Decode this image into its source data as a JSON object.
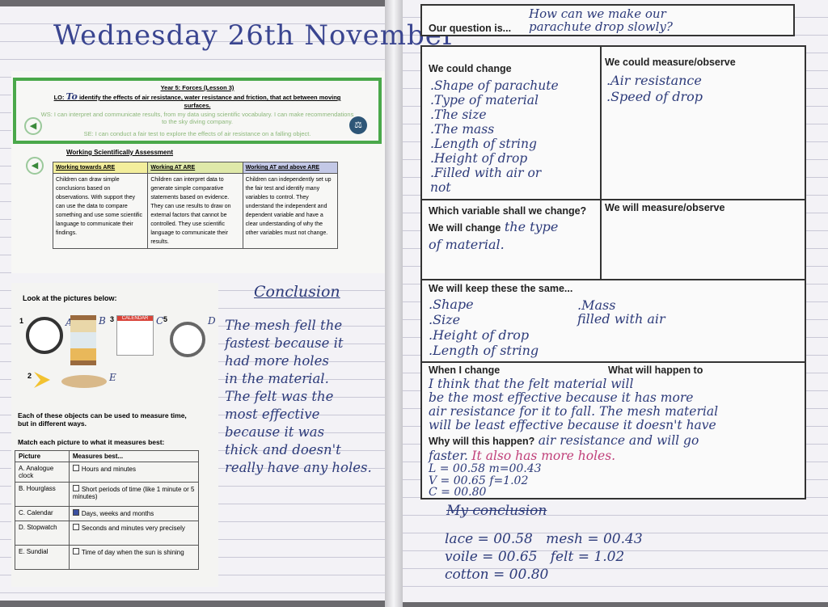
{
  "left_page": {
    "date_title": "Wednesday 26th November",
    "objectives": {
      "heading": "Year 5: Forces (Lesson 3)",
      "lo_prefix": "LO:",
      "lo_correction": "To",
      "lo": "identify the effects of air resistance, water resistance and friction, that act between moving surfaces.",
      "ws": "WS: I can interpret and communicate results, from my data using scientific vocabulary. I can make recommendations to the sky diving company.",
      "se": "SE: I can conduct a fair test to explore the effects of air resistance on a falling object."
    },
    "assessment": {
      "title": "Working Scientifically Assessment",
      "columns": [
        {
          "header": "Working towards ARE",
          "text": "Children can draw simple conclusions based on observations. With support they can use the data to compare something and use some scientific language to communicate their findings.",
          "color": "#f3ee9c"
        },
        {
          "header": "Working AT ARE",
          "text": "Children can interpret data to generate simple comparative statements based on evidence. They can use results to draw on external factors that cannot be controlled. They use scientific language to communicate their results.",
          "color": "#dfe9a9"
        },
        {
          "header": "Working AT and above ARE",
          "text": "Children can independently set up the fair test and identify many variables to control. They understand the independent and dependent variable and have a clear understanding of why the other variables must not change.",
          "color": "#c3c8e6"
        }
      ]
    },
    "worksheet": {
      "instruction": "Look at the pictures below:",
      "pictures": [
        {
          "num": "1",
          "letter": "A",
          "icon": "clock-icon"
        },
        {
          "num": "",
          "letter": "B",
          "icon": "hourglass-icon"
        },
        {
          "num": "3",
          "letter": "C",
          "icon": "calendar-icon",
          "label": "CALENDAR"
        },
        {
          "num": "5",
          "letter": "D",
          "icon": "stopwatch-icon"
        },
        {
          "num": "2",
          "letter": "E",
          "icon": "sundial-icon"
        }
      ],
      "text1": "Each of these objects can be used to measure time, but in different ways.",
      "text2": "Match each picture to what it measures best:",
      "headers": [
        "Picture",
        "Measures best..."
      ],
      "rows": [
        [
          "A. Analogue clock",
          "Hours and minutes"
        ],
        [
          "B. Hourglass",
          "Short periods of time (like 1 minute or 5 minutes)"
        ],
        [
          "C. Calendar",
          "Days, weeks and months"
        ],
        [
          "D. Stopwatch",
          "Seconds and minutes very precisely"
        ],
        [
          "E. Sundial",
          "Time of day when the sun is shining"
        ]
      ],
      "checked_row": 2
    },
    "conclusion": {
      "heading": "Conclusion",
      "text": "The mesh fell the\nfastest because it\nhad more holes\nin the material.\nThe felt was the\nmost effective\nbecause it was\nthick and doesn't\nreally have any holes."
    }
  },
  "right_page": {
    "question_label": "Our question is...",
    "question": "How can we make our\nparachute drop slowly?",
    "could_change_label": "We could change",
    "could_change": ".Shape of parachute\n.Type of material\n.The size\n.The mass\n.Length of string\n.Height of drop\n.Filled with air or\nnot",
    "could_measure_label": "We could measure/observe",
    "could_measure": ".Air resistance\n.Speed of drop",
    "which_variable_label": "Which variable shall we change?\nWe will change",
    "which_variable": "the type\nof material.",
    "will_measure_label": "We will measure/observe",
    "keep_same_label": "We will keep these the same...",
    "keep_same_a": ".Shape\n.Size\n.Height of drop\n.Length of string",
    "keep_same_b": ".Mass\nfilled with air",
    "when_change_label": "When I change",
    "what_happen_label": "What will happen to",
    "prediction": "I think that the felt material will\nbe the most effective because it has more\nair resistance for it to fall. The mesh material\nwill be least effective because it doesn't have",
    "why_label": "Why will this happen?",
    "why": "air resistance and will go\nfaster.",
    "why_pink": "It also has more holes.",
    "results": "L = 00.58  m=00.43\nV = 00.65  f=1.02\nC = 00.80",
    "my_conclusion_heading": "My conclusion",
    "my_conclusion": "lace = 00.58   mesh = 00.43\nvoile = 00.65   felt = 1.02\ncotton = 00.80"
  }
}
